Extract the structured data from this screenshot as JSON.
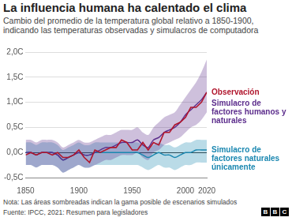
{
  "chart_data": {
    "type": "line",
    "title": "La influencia humana ha calentado el clima",
    "subtitle": "Cambio del promedio de la temperatura global relativo a 1850-1900, indicando las temperaturas observadas y simulacros de computadora",
    "note": "Nota: Las áreas sombreadas indican la gama posible de escenarios simulados",
    "source": "Fuente: IPCC, 2021: Resumen para legisladores",
    "logo": "BBC",
    "x": [
      1850,
      1855,
      1860,
      1865,
      1870,
      1875,
      1880,
      1885,
      1890,
      1895,
      1900,
      1905,
      1910,
      1915,
      1920,
      1925,
      1930,
      1935,
      1940,
      1945,
      1950,
      1955,
      1960,
      1965,
      1970,
      1975,
      1980,
      1985,
      1990,
      1995,
      2000,
      2005,
      2010,
      2015,
      2020
    ],
    "xlim": [
      1850,
      2020
    ],
    "xticks": [
      1850,
      1900,
      1950,
      2000,
      2020
    ],
    "ylim": [
      -0.5,
      2.0
    ],
    "yticks": [
      {
        "value": -0.5,
        "label": "-0,5C"
      },
      {
        "value": 0,
        "label": "0,0C"
      },
      {
        "value": 0.5,
        "label": "0,5C"
      },
      {
        "value": 1,
        "label": "1,0C"
      },
      {
        "value": 1.5,
        "label": "1,5C"
      },
      {
        "value": 2,
        "label": "2,0C"
      }
    ],
    "grid": true,
    "legend": "right",
    "series": [
      {
        "name": "Observación",
        "color": "#b0152c",
        "values": [
          -0.05,
          0.0,
          -0.05,
          0.0,
          0.0,
          -0.05,
          0.0,
          -0.1,
          -0.1,
          -0.05,
          0.05,
          -0.1,
          -0.2,
          0.05,
          0.0,
          0.05,
          0.1,
          0.1,
          0.25,
          0.2,
          0.05,
          0.05,
          0.2,
          0.05,
          0.2,
          0.15,
          0.4,
          0.4,
          0.55,
          0.6,
          0.7,
          0.9,
          0.9,
          1.0,
          1.2
        ]
      },
      {
        "name": "Simulacro de factores humanos y naturales",
        "color": "#5c2d8c",
        "values": [
          0.0,
          0.0,
          -0.05,
          0.0,
          0.0,
          0.0,
          -0.05,
          -0.15,
          -0.1,
          -0.05,
          0.0,
          -0.05,
          -0.05,
          0.0,
          0.05,
          0.1,
          0.1,
          0.15,
          0.2,
          0.2,
          0.2,
          0.25,
          0.15,
          0.1,
          0.25,
          0.3,
          0.4,
          0.45,
          0.5,
          0.6,
          0.75,
          0.85,
          0.95,
          1.05,
          1.2
        ],
        "lower": [
          -0.25,
          -0.25,
          -0.3,
          -0.25,
          -0.25,
          -0.25,
          -0.3,
          -0.4,
          -0.35,
          -0.3,
          -0.25,
          -0.3,
          -0.3,
          -0.25,
          -0.2,
          -0.15,
          -0.15,
          -0.1,
          -0.05,
          -0.05,
          -0.05,
          0.0,
          -0.1,
          -0.15,
          0.0,
          0.05,
          0.15,
          0.2,
          0.25,
          0.3,
          0.4,
          0.5,
          0.55,
          0.65,
          0.8
        ],
        "upper": [
          0.25,
          0.25,
          0.2,
          0.25,
          0.25,
          0.25,
          0.2,
          0.1,
          0.15,
          0.2,
          0.25,
          0.2,
          0.2,
          0.25,
          0.3,
          0.35,
          0.35,
          0.4,
          0.45,
          0.45,
          0.45,
          0.5,
          0.4,
          0.35,
          0.5,
          0.6,
          0.7,
          0.75,
          0.8,
          0.95,
          1.1,
          1.25,
          1.4,
          1.6,
          1.85
        ]
      },
      {
        "name": "Simulacro de factores naturales únicamente",
        "color": "#1a87b0",
        "values": [
          0.0,
          0.0,
          -0.05,
          0.0,
          0.0,
          0.0,
          -0.05,
          -0.15,
          -0.1,
          -0.05,
          0.0,
          -0.05,
          -0.05,
          0.0,
          0.0,
          0.0,
          0.0,
          0.0,
          0.0,
          0.0,
          0.0,
          0.0,
          -0.05,
          -0.1,
          -0.05,
          0.0,
          -0.05,
          -0.05,
          -0.1,
          -0.05,
          0.0,
          0.0,
          0.05,
          0.05,
          0.05
        ],
        "lower": [
          -0.25,
          -0.25,
          -0.3,
          -0.25,
          -0.25,
          -0.25,
          -0.3,
          -0.4,
          -0.35,
          -0.3,
          -0.25,
          -0.3,
          -0.3,
          -0.25,
          -0.25,
          -0.25,
          -0.25,
          -0.25,
          -0.25,
          -0.25,
          -0.25,
          -0.25,
          -0.3,
          -0.35,
          -0.3,
          -0.25,
          -0.3,
          -0.3,
          -0.35,
          -0.3,
          -0.25,
          -0.25,
          -0.2,
          -0.2,
          -0.2
        ],
        "upper": [
          0.2,
          0.2,
          0.15,
          0.2,
          0.2,
          0.2,
          0.15,
          0.05,
          0.1,
          0.15,
          0.2,
          0.15,
          0.15,
          0.2,
          0.2,
          0.2,
          0.2,
          0.2,
          0.2,
          0.2,
          0.2,
          0.2,
          0.15,
          0.1,
          0.15,
          0.2,
          0.15,
          0.15,
          0.1,
          0.15,
          0.2,
          0.2,
          0.25,
          0.25,
          0.25
        ]
      }
    ]
  }
}
